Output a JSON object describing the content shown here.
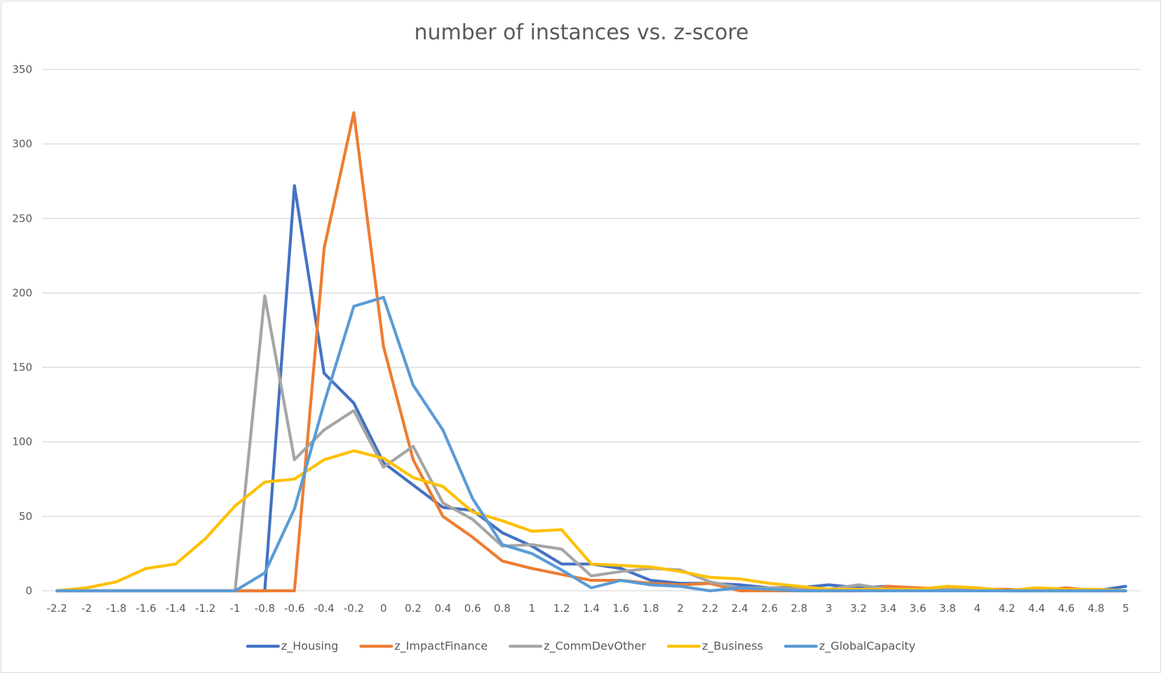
{
  "chart_data": {
    "type": "line",
    "title": "number of instances vs. z-score",
    "xlabel": "",
    "ylabel": "",
    "ylim": [
      0,
      350
    ],
    "yticks": [
      0,
      50,
      100,
      150,
      200,
      250,
      300,
      350
    ],
    "grid": true,
    "legend_position": "bottom",
    "categories": [
      "-2.2",
      "-2",
      "-1.8",
      "-1.6",
      "-1.4",
      "-1.2",
      "-1",
      "-0.8",
      "-0.6",
      "-0.4",
      "-0.2",
      "0",
      "0.2",
      "0.4",
      "0.6",
      "0.8",
      "1",
      "1.2",
      "1.4",
      "1.6",
      "1.8",
      "2",
      "2.2",
      "2.4",
      "2.6",
      "2.8",
      "3",
      "3.2",
      "3.4",
      "3.6",
      "3.8",
      "4",
      "4.2",
      "4.4",
      "4.6",
      "4.8",
      "5"
    ],
    "series": [
      {
        "name": "z_Housing",
        "color": "#4472C4",
        "values": [
          0,
          0,
          0,
          0,
          0,
          0,
          0,
          0,
          272,
          146,
          126,
          86,
          71,
          56,
          54,
          39,
          30,
          18,
          18,
          15,
          7,
          5,
          5,
          4,
          2,
          2,
          4,
          2,
          3,
          1,
          1,
          1,
          0,
          0,
          0,
          0,
          3
        ]
      },
      {
        "name": "z_ImpactFinance",
        "color": "#ED7D31",
        "values": [
          0,
          0,
          0,
          0,
          0,
          0,
          0,
          0,
          0,
          230,
          321,
          164,
          88,
          50,
          36,
          20,
          15,
          11,
          7,
          7,
          5,
          4,
          5,
          0,
          0,
          0,
          0,
          0,
          3,
          2,
          1,
          1,
          1,
          0,
          2,
          0,
          0
        ]
      },
      {
        "name": "z_CommDevOther",
        "color": "#A5A5A5",
        "values": [
          0,
          0,
          0,
          0,
          0,
          0,
          0,
          198,
          88,
          108,
          121,
          83,
          97,
          59,
          48,
          30,
          31,
          28,
          10,
          13,
          15,
          14,
          6,
          2,
          2,
          1,
          1,
          4,
          1,
          1,
          1,
          1,
          0,
          0,
          0,
          0,
          0
        ]
      },
      {
        "name": "z_Business",
        "color": "#FFC000",
        "values": [
          0,
          2,
          6,
          15,
          18,
          35,
          57,
          73,
          75,
          88,
          94,
          89,
          76,
          70,
          53,
          47,
          40,
          41,
          18,
          17,
          16,
          13,
          9,
          8,
          5,
          3,
          1,
          1,
          1,
          1,
          3,
          2,
          0,
          2,
          1,
          1,
          0
        ]
      },
      {
        "name": "z_GlobalCapacity",
        "color": "#5B9BD5",
        "values": [
          0,
          0,
          0,
          0,
          0,
          0,
          0,
          12,
          55,
          126,
          191,
          197,
          138,
          108,
          62,
          31,
          25,
          14,
          2,
          7,
          4,
          3,
          0,
          2,
          1,
          0,
          0,
          0,
          0,
          0,
          0,
          0,
          0,
          0,
          0,
          0,
          0
        ]
      }
    ]
  }
}
